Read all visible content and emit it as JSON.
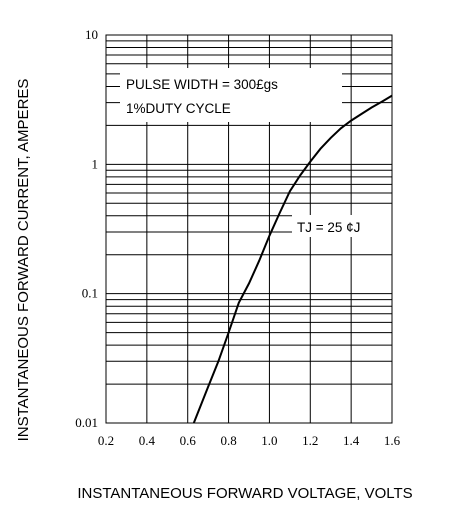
{
  "chart_data": {
    "type": "line",
    "title": "",
    "xlabel": "INSTANTANEOUS FORWARD VOLTAGE, VOLTS",
    "ylabel": "INSTANTANEOUS FORWARD CURRENT, AMPERES",
    "x_scale": "linear",
    "y_scale": "log",
    "xlim": [
      0.2,
      1.6
    ],
    "ylim": [
      0.01,
      10
    ],
    "x_ticks": [
      "0.2",
      "0.4",
      "0.6",
      "0.8",
      "1.0",
      "1.2",
      "1.4",
      "1.6"
    ],
    "y_ticks": [
      "0.01",
      "0.1",
      "1",
      "10"
    ],
    "grid": true,
    "annotations": [
      "PULSE WIDTH = 300£gs",
      "1%DUTY CYCLE",
      "TJ = 25  ¢J"
    ],
    "series": [
      {
        "x": [
          0.63,
          0.7,
          0.75,
          0.8,
          0.85,
          0.9,
          0.95,
          1.0,
          1.05,
          1.1,
          1.15,
          1.2,
          1.25,
          1.3,
          1.35,
          1.4,
          1.45,
          1.5,
          1.55,
          1.6
        ],
        "y": [
          0.01,
          0.019,
          0.03,
          0.05,
          0.085,
          0.12,
          0.18,
          0.28,
          0.42,
          0.62,
          0.82,
          1.05,
          1.32,
          1.6,
          1.9,
          2.18,
          2.45,
          2.75,
          3.05,
          3.4
        ]
      }
    ]
  }
}
